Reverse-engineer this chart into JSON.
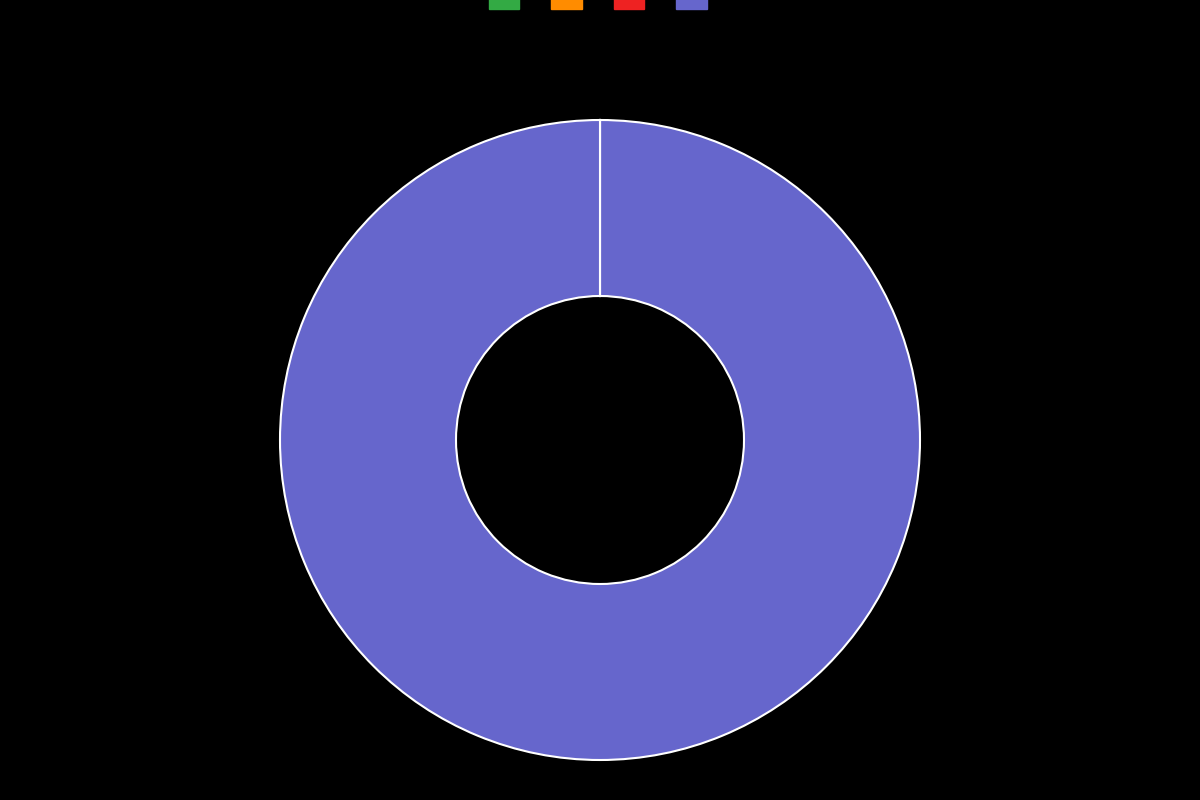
{
  "slices": [
    0.001,
    0.001,
    0.001,
    99.997
  ],
  "colors": [
    "#33aa44",
    "#ff8c00",
    "#ee2222",
    "#6666cc"
  ],
  "legend_labels": [
    "",
    "",
    "",
    ""
  ],
  "background_color": "#000000",
  "wedge_edge_color": "#ffffff",
  "wedge_linewidth": 1.5,
  "donut_hole_ratio": 0.45,
  "startangle": 90,
  "figsize": [
    12,
    8
  ]
}
